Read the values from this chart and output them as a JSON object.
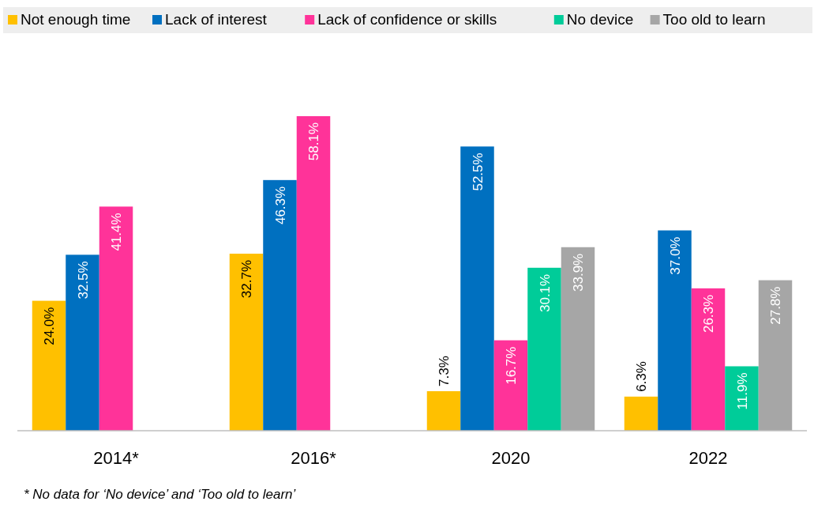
{
  "chart_data": {
    "type": "bar",
    "categories": [
      "2014*",
      "2016*",
      "2020",
      "2022"
    ],
    "series": [
      {
        "name": "Not enough time",
        "color": "#ffc000",
        "values": [
          24.0,
          32.7,
          7.3,
          6.3
        ],
        "value_labels": [
          "24.0%",
          "32.7%",
          "7.3%",
          "6.3%"
        ]
      },
      {
        "name": "Lack of interest",
        "color": "#0070c0",
        "values": [
          32.5,
          46.3,
          52.5,
          37.0
        ],
        "value_labels": [
          "32.5%",
          "46.3%",
          "52.5%",
          "37.0%"
        ]
      },
      {
        "name": "Lack of confidence or skills",
        "color": "#ff3399",
        "values": [
          41.4,
          58.1,
          16.7,
          26.3
        ],
        "value_labels": [
          "41.4%",
          "58.1%",
          "16.7%",
          "26.3%"
        ]
      },
      {
        "name": "No device",
        "color": "#00cc99",
        "values": [
          null,
          null,
          30.1,
          11.9
        ],
        "value_labels": [
          null,
          null,
          "30.1%",
          "11.9%"
        ]
      },
      {
        "name": "Too old to learn",
        "color": "#a6a6a6",
        "values": [
          null,
          null,
          33.9,
          27.8
        ],
        "value_labels": [
          null,
          null,
          "33.9%",
          "27.8%"
        ]
      }
    ],
    "legend": "top",
    "grid": false,
    "annotations": [
      "* No data for ‘No device’ and ‘Too old to learn’"
    ]
  }
}
